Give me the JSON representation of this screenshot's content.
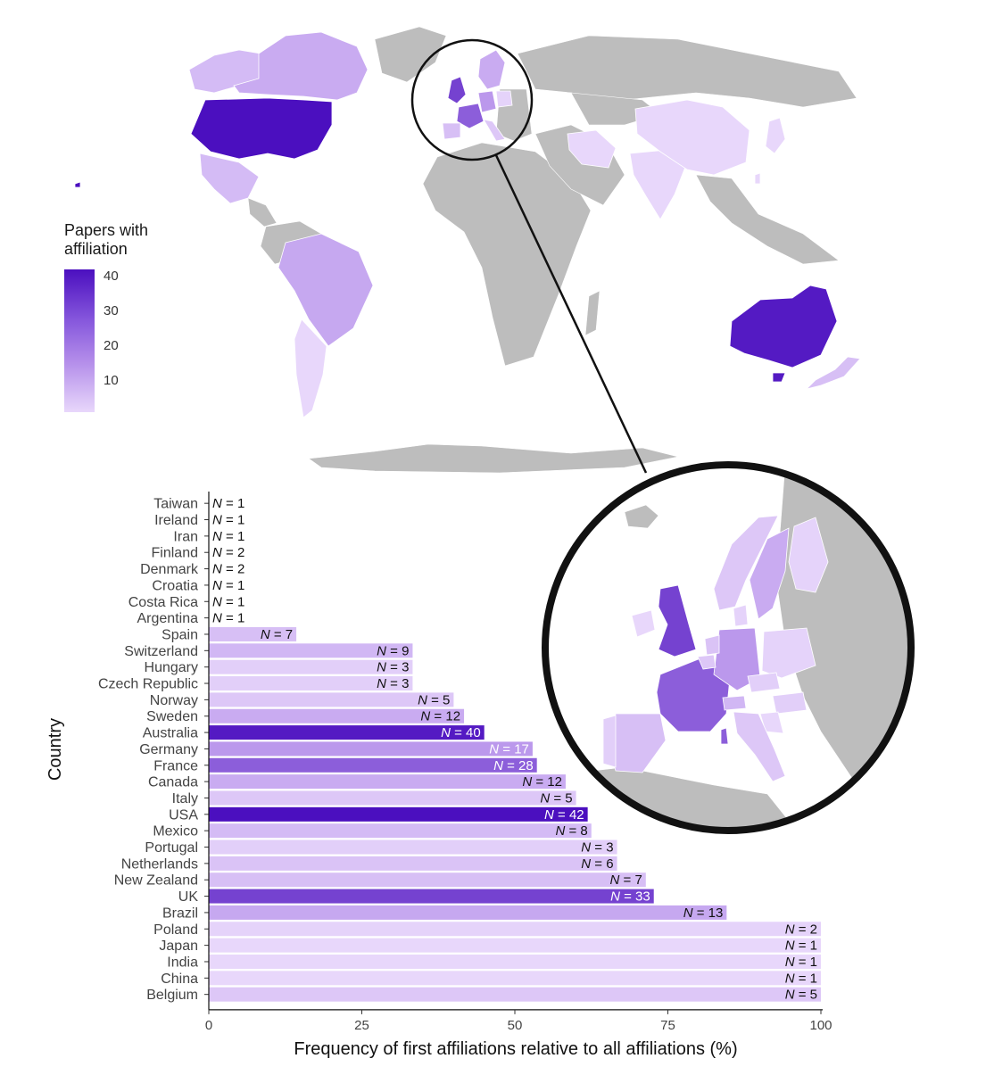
{
  "map": {
    "legend_title_line1": "Papers with",
    "legend_title_line2": "affiliation",
    "legend_ticks": [
      "40",
      "30",
      "20",
      "10"
    ],
    "legend_tick_values": [
      40,
      30,
      20,
      10
    ],
    "legend_range": [
      1,
      42
    ],
    "colors": {
      "low": "#e8d7fb",
      "mid": "#b48eea",
      "high": "#4b0fbf",
      "no_data": "#bdbdbd",
      "ocean": "#ffffff"
    }
  },
  "chart_data": {
    "type": "bar",
    "orientation": "horizontal",
    "title": "",
    "xlabel": "Frequency of first affiliations relative to all affiliations (%)",
    "ylabel": "Country",
    "xlim": [
      0,
      100
    ],
    "x_ticks": [
      0,
      25,
      50,
      75,
      100
    ],
    "grid": false,
    "categories": [
      "Taiwan",
      "Ireland",
      "Iran",
      "Finland",
      "Denmark",
      "Croatia",
      "Costa Rica",
      "Argentina",
      "Spain",
      "Switzerland",
      "Hungary",
      "Czech Republic",
      "Norway",
      "Sweden",
      "Australia",
      "Germany",
      "France",
      "Canada",
      "Italy",
      "USA",
      "Mexico",
      "Portugal",
      "Netherlands",
      "New Zealand",
      "UK",
      "Brazil",
      "Poland",
      "Japan",
      "India",
      "China",
      "Belgium"
    ],
    "values": [
      0,
      0,
      0,
      0,
      0,
      0,
      0,
      0,
      14.3,
      33.3,
      33.3,
      33.3,
      40,
      41.7,
      45,
      52.9,
      53.6,
      58.3,
      60,
      61.9,
      62.5,
      66.7,
      66.7,
      71.4,
      72.7,
      84.6,
      100,
      100,
      100,
      100,
      100
    ],
    "n_counts": [
      1,
      1,
      1,
      2,
      2,
      1,
      1,
      1,
      7,
      9,
      3,
      3,
      5,
      12,
      40,
      17,
      28,
      12,
      5,
      42,
      8,
      3,
      6,
      7,
      33,
      13,
      2,
      1,
      1,
      1,
      5
    ],
    "n_label_prefix": "N",
    "n_label_sep": " = "
  }
}
